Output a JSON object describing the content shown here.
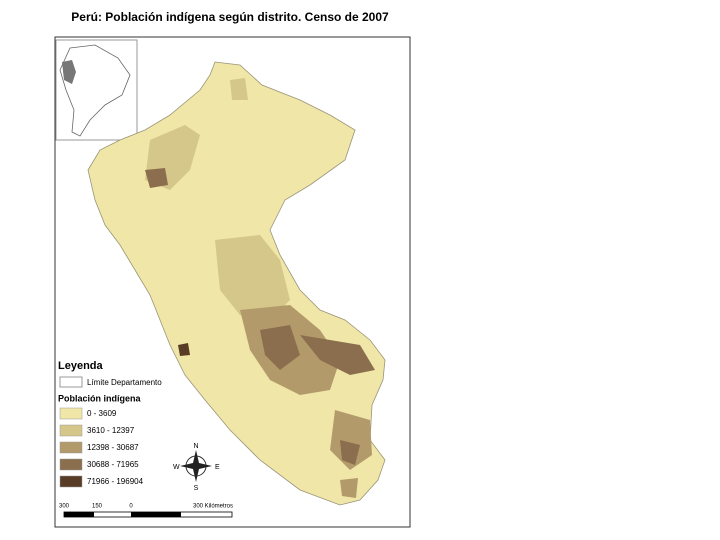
{
  "title": "Perú: Población indígena según distrito. Censo de 2007",
  "legend": {
    "title": "Leyenda",
    "boundary": "Límite Departamento",
    "subtitle": "Población indígena",
    "classes": [
      {
        "label": "0 - 3609",
        "color": "#efe6a8"
      },
      {
        "label": "3610 - 12397",
        "color": "#d5c68a"
      },
      {
        "label": "12398 - 30687",
        "color": "#b39a6b"
      },
      {
        "label": "30688 - 71965",
        "color": "#8b6e4e"
      },
      {
        "label": "71966 - 196904",
        "color": "#583c25"
      }
    ]
  },
  "compass": {
    "n": "N",
    "s": "S",
    "e": "E",
    "w": "W"
  },
  "scale": {
    "labels": [
      "300",
      "150",
      "0",
      "300 Kilómetros"
    ]
  }
}
